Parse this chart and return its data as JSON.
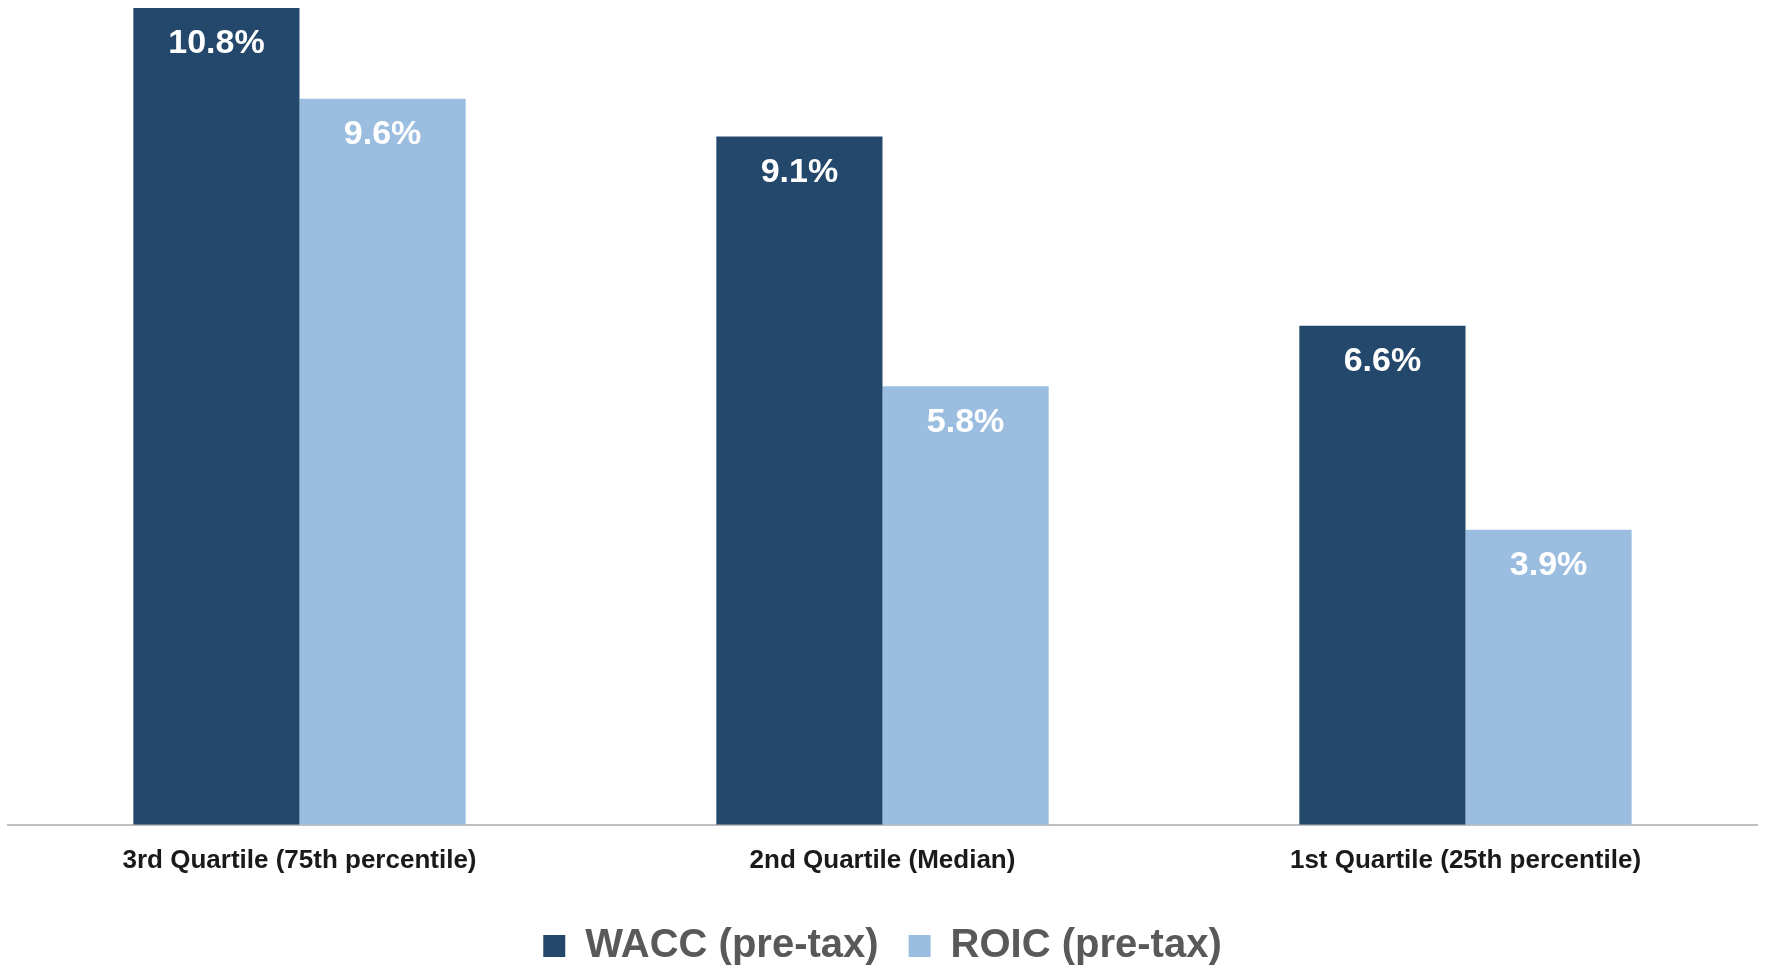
{
  "chart_data": {
    "type": "bar",
    "categories": [
      "3rd Quartile (75th percentile)",
      "2nd Quartile (Median)",
      "1st Quartile (25th percentile)"
    ],
    "series": [
      {
        "name": "WACC (pre-tax)",
        "color": "#24486b",
        "values": [
          10.8,
          9.1,
          6.6
        ],
        "value_labels": [
          "10.8%",
          "9.1%",
          "6.6%"
        ]
      },
      {
        "name": "ROIC (pre-tax)",
        "color": "#9bbee0",
        "values": [
          9.6,
          5.8,
          3.9
        ],
        "value_labels": [
          "9.6%",
          "5.8%",
          "3.9%"
        ]
      }
    ],
    "legend": "bottom",
    "grid": false
  }
}
